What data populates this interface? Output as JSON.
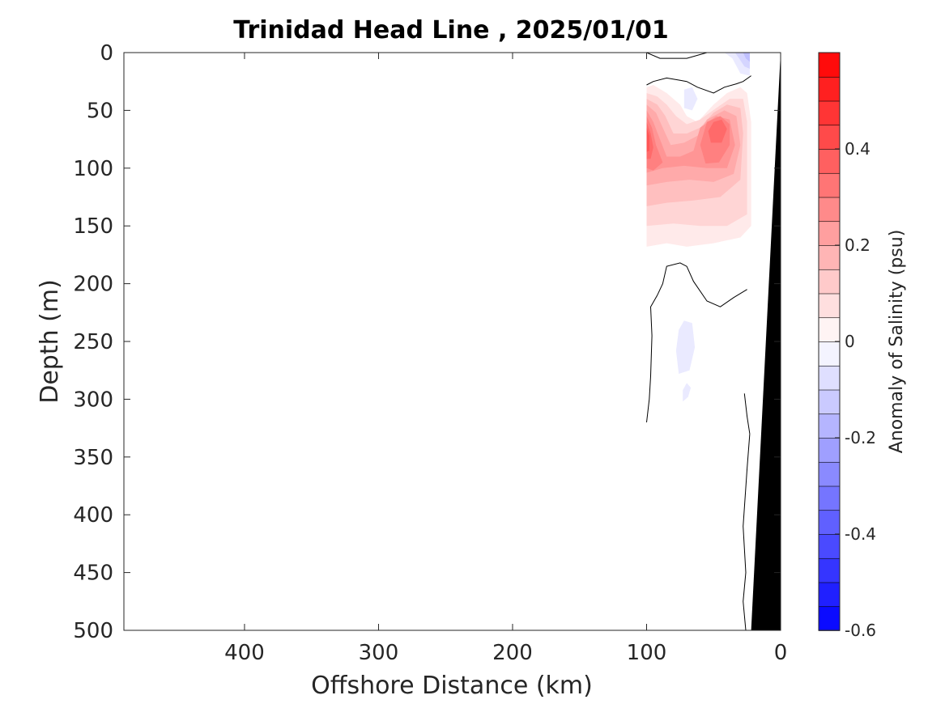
{
  "chart_data": {
    "type": "heatmap",
    "title": "Trinidad Head Line , 2025/01/01",
    "xlabel": "Offshore Distance (km)",
    "ylabel": "Depth (m)",
    "xlim": [
      490,
      0
    ],
    "ylim": [
      0,
      500
    ],
    "x_reversed": true,
    "y_reversed": true,
    "x_ticks": [
      400,
      300,
      200,
      100,
      0
    ],
    "y_ticks": [
      0,
      50,
      100,
      150,
      200,
      250,
      300,
      350,
      400,
      450,
      500
    ],
    "colorbar": {
      "label": "Anomaly of Salinity (psu)",
      "range": [
        -0.6,
        0.6
      ],
      "step": 0.05,
      "ticks": [
        0.4,
        0.2,
        0,
        -0.2,
        -0.4,
        -0.6
      ],
      "tick_labels": [
        "0.4",
        "0.2",
        "0",
        "-0.2",
        "-0.4",
        "-0.6"
      ],
      "low_color": "#0000ff",
      "mid_color": "#ffffff",
      "high_color": "#ff0000"
    },
    "contour_levels": [
      {
        "level": 0.05,
        "region": [
          [
            100,
            30
          ],
          [
            95,
            28
          ],
          [
            85,
            35
          ],
          [
            75,
            45
          ],
          [
            70,
            55
          ],
          [
            62,
            60
          ],
          [
            50,
            45
          ],
          [
            40,
            35
          ],
          [
            30,
            30
          ],
          [
            25,
            35
          ],
          [
            22,
            60
          ],
          [
            22,
            150
          ],
          [
            30,
            160
          ],
          [
            50,
            165
          ],
          [
            70,
            168
          ],
          [
            85,
            165
          ],
          [
            100,
            168
          ]
        ]
      },
      {
        "level": 0.1,
        "region": [
          [
            100,
            35
          ],
          [
            92,
            38
          ],
          [
            85,
            45
          ],
          [
            78,
            55
          ],
          [
            70,
            62
          ],
          [
            60,
            58
          ],
          [
            48,
            48
          ],
          [
            38,
            40
          ],
          [
            28,
            40
          ],
          [
            25,
            60
          ],
          [
            25,
            140
          ],
          [
            40,
            150
          ],
          [
            60,
            150
          ],
          [
            80,
            148
          ],
          [
            100,
            150
          ]
        ]
      },
      {
        "level": 0.15,
        "region": [
          [
            100,
            40
          ],
          [
            92,
            45
          ],
          [
            86,
            55
          ],
          [
            80,
            70
          ],
          [
            70,
            70
          ],
          [
            60,
            65
          ],
          [
            50,
            52
          ],
          [
            40,
            45
          ],
          [
            30,
            48
          ],
          [
            28,
            70
          ],
          [
            30,
            110
          ],
          [
            45,
            125
          ],
          [
            65,
            128
          ],
          [
            85,
            130
          ],
          [
            100,
            133
          ]
        ]
      },
      {
        "level": 0.2,
        "region": [
          [
            100,
            45
          ],
          [
            93,
            52
          ],
          [
            88,
            65
          ],
          [
            82,
            80
          ],
          [
            72,
            78
          ],
          [
            62,
            72
          ],
          [
            55,
            58
          ],
          [
            42,
            50
          ],
          [
            33,
            55
          ],
          [
            30,
            80
          ],
          [
            35,
            105
          ],
          [
            50,
            112
          ],
          [
            68,
            110
          ],
          [
            85,
            112
          ],
          [
            100,
            115
          ]
        ]
      },
      {
        "level": 0.25,
        "region": [
          [
            100,
            50
          ],
          [
            95,
            60
          ],
          [
            90,
            75
          ],
          [
            85,
            90
          ],
          [
            75,
            90
          ],
          [
            65,
            85
          ],
          [
            60,
            65
          ],
          [
            48,
            55
          ],
          [
            38,
            58
          ],
          [
            34,
            80
          ],
          [
            40,
            100
          ],
          [
            55,
            100
          ],
          [
            72,
            98
          ],
          [
            88,
            100
          ],
          [
            100,
            104
          ]
        ]
      },
      {
        "level": 0.3,
        "region": [
          [
            100,
            55
          ],
          [
            96,
            65
          ],
          [
            93,
            80
          ],
          [
            88,
            95
          ],
          [
            95,
            102
          ],
          [
            100,
            100
          ]
        ]
      },
      {
        "level": 0.3,
        "region": [
          [
            55,
            60
          ],
          [
            45,
            55
          ],
          [
            38,
            62
          ],
          [
            38,
            80
          ],
          [
            46,
            95
          ],
          [
            56,
            96
          ],
          [
            60,
            80
          ]
        ]
      },
      {
        "level": 0.35,
        "region": [
          [
            100,
            60
          ],
          [
            97,
            70
          ],
          [
            95,
            82
          ],
          [
            97,
            92
          ],
          [
            100,
            92
          ]
        ]
      },
      {
        "level": 0.35,
        "region": [
          [
            50,
            60
          ],
          [
            44,
            58
          ],
          [
            40,
            66
          ],
          [
            44,
            78
          ],
          [
            52,
            78
          ],
          [
            54,
            68
          ]
        ]
      },
      {
        "level": 0.4,
        "region": [
          [
            100,
            65
          ],
          [
            98,
            72
          ],
          [
            98,
            85
          ],
          [
            100,
            86
          ]
        ]
      },
      {
        "level": -0.05,
        "region": [
          [
            72,
            32
          ],
          [
            66,
            30
          ],
          [
            62,
            40
          ],
          [
            66,
            50
          ],
          [
            72,
            48
          ]
        ]
      },
      {
        "level": -0.05,
        "region": [
          [
            72,
            232
          ],
          [
            66,
            234
          ],
          [
            64,
            255
          ],
          [
            68,
            275
          ],
          [
            76,
            278
          ],
          [
            78,
            258
          ],
          [
            76,
            240
          ]
        ]
      },
      {
        "level": -0.05,
        "region": [
          [
            73,
            302
          ],
          [
            69,
            298
          ],
          [
            67,
            290
          ],
          [
            70,
            286
          ],
          [
            73,
            292
          ]
        ]
      },
      {
        "level": -0.05,
        "region": [
          [
            42,
            0
          ],
          [
            36,
            5
          ],
          [
            30,
            18
          ],
          [
            23,
            20
          ],
          [
            23,
            0
          ]
        ]
      },
      {
        "level": -0.1,
        "region": [
          [
            34,
            0
          ],
          [
            31,
            5
          ],
          [
            27,
            12
          ],
          [
            23,
            14
          ],
          [
            23,
            0
          ]
        ]
      },
      {
        "level": -0.15,
        "region": [
          [
            28,
            0
          ],
          [
            26,
            5
          ],
          [
            23,
            8
          ],
          [
            23,
            0
          ]
        ]
      }
    ],
    "zero_contours": [
      [
        [
          100,
          0
        ],
        [
          90,
          5
        ],
        [
          70,
          5
        ],
        [
          55,
          0
        ]
      ],
      [
        [
          100,
          28
        ],
        [
          95,
          25
        ],
        [
          85,
          22
        ],
        [
          75,
          24
        ],
        [
          70,
          25
        ],
        [
          62,
          30
        ],
        [
          50,
          35
        ],
        [
          42,
          30
        ],
        [
          33,
          27
        ],
        [
          28,
          25
        ],
        [
          22,
          20
        ]
      ],
      [
        [
          100,
          320
        ],
        [
          98,
          300
        ],
        [
          97,
          280
        ],
        [
          96,
          245
        ],
        [
          97,
          220
        ],
        [
          92,
          210
        ],
        [
          88,
          200
        ],
        [
          85,
          185
        ],
        [
          75,
          182
        ],
        [
          70,
          185
        ],
        [
          65,
          198
        ],
        [
          55,
          215
        ],
        [
          45,
          220
        ],
        [
          35,
          212
        ],
        [
          25,
          205
        ]
      ],
      [
        [
          27,
          295
        ],
        [
          25,
          315
        ],
        [
          23,
          330
        ]
      ],
      [
        [
          23,
          330
        ],
        [
          25,
          360
        ],
        [
          28,
          410
        ],
        [
          26,
          450
        ],
        [
          28,
          475
        ],
        [
          26,
          500
        ]
      ]
    ],
    "bathymetry_polygon": [
      [
        0,
        0
      ],
      [
        22,
        500
      ],
      [
        0,
        500
      ]
    ],
    "bathymetry_color": "#000000"
  }
}
